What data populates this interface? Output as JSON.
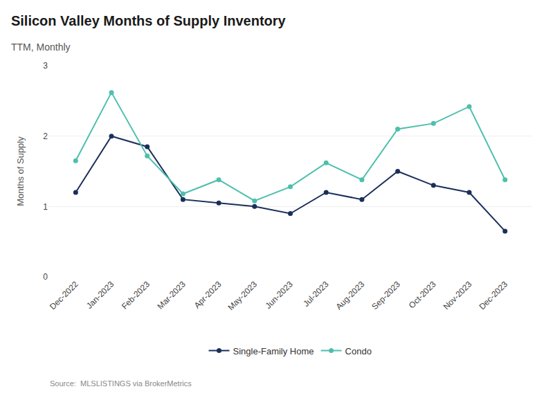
{
  "chart_data": {
    "type": "line",
    "title": "Silicon Valley Months of Supply Inventory",
    "subtitle": "TTM, Monthly",
    "ylabel": "Months of Supply",
    "source": "Source:  MLSLISTINGS via BrokerMetrics",
    "categories": [
      "Dec-2022",
      "Jan-2023",
      "Feb-2023",
      "Mar-2023",
      "Apr-2023",
      "May-2023",
      "Jun-2023",
      "Jul-2023",
      "Aug-2023",
      "Sep-2023",
      "Oct-2023",
      "Nov-2023",
      "Dec-2023"
    ],
    "series": [
      {
        "name": "Single-Family Home",
        "color": "#1a2f5a",
        "values": [
          1.2,
          2.0,
          1.85,
          1.1,
          1.05,
          1.0,
          0.9,
          1.2,
          1.1,
          1.5,
          1.3,
          1.2,
          0.65
        ]
      },
      {
        "name": "Condo",
        "color": "#4dbfad",
        "values": [
          1.65,
          2.62,
          1.72,
          1.18,
          1.38,
          1.08,
          1.28,
          1.62,
          1.38,
          2.1,
          2.18,
          2.42,
          1.38
        ]
      }
    ],
    "ylim": [
      0,
      3
    ],
    "yticks": [
      0,
      1,
      2,
      3
    ],
    "grid": true,
    "legend": "bottom",
    "marker": "circle"
  }
}
